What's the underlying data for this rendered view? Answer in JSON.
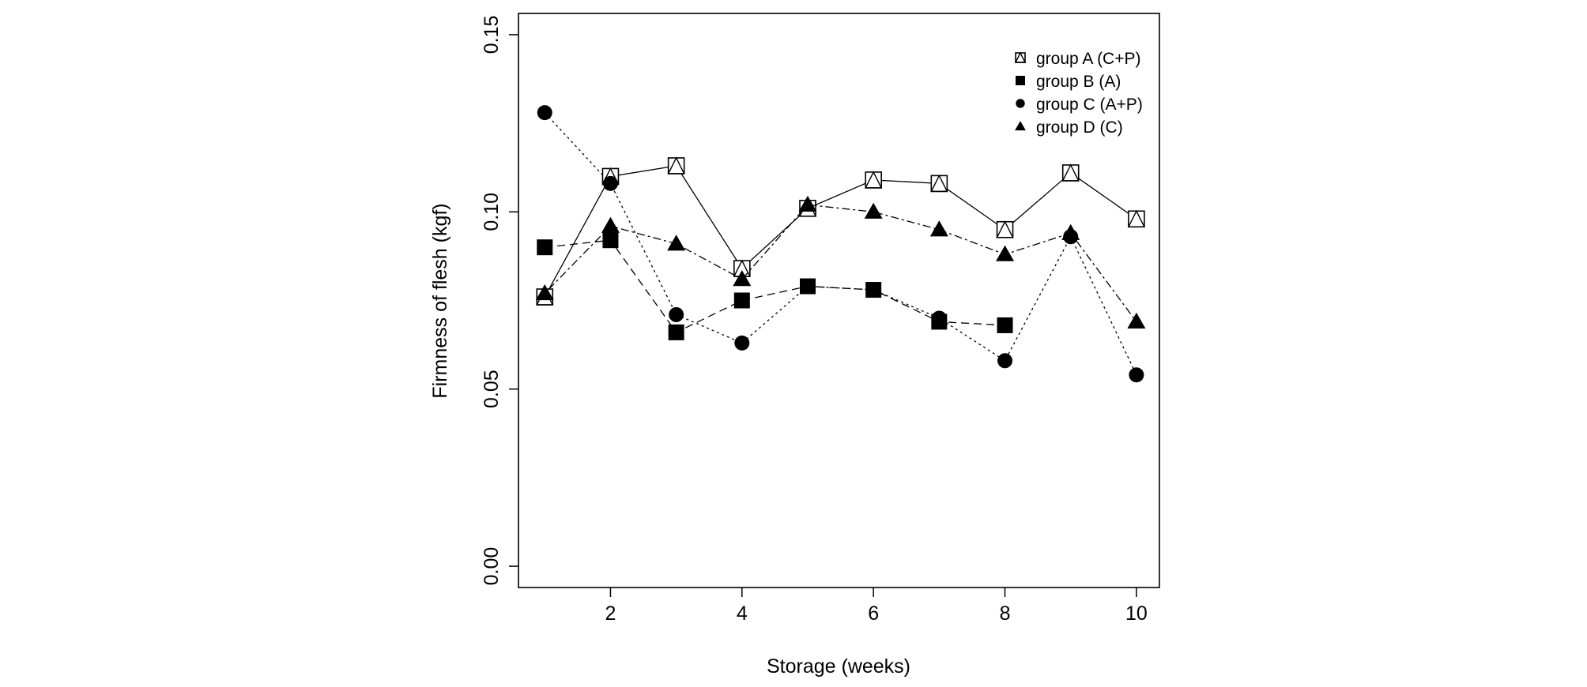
{
  "chart_data": {
    "type": "line",
    "title": "",
    "xlabel": "Storage (weeks)",
    "ylabel": "Firmness of flesh (kgf)",
    "xlim": [
      0.6,
      10.35
    ],
    "ylim": [
      -0.006,
      0.156
    ],
    "x_ticks": [
      2,
      4,
      6,
      8,
      10
    ],
    "x_tick_labels": [
      "2",
      "4",
      "6",
      "8",
      "10"
    ],
    "y_ticks": [
      0.0,
      0.05,
      0.1,
      0.15
    ],
    "y_tick_labels": [
      "0.00",
      "0.05",
      "0.10",
      "0.15"
    ],
    "grid": false,
    "legend_position": "top-right",
    "series": [
      {
        "name": "group A (C+P)",
        "marker": "boxed-triangle",
        "line_style": "solid",
        "x": [
          1,
          2,
          3,
          4,
          5,
          6,
          7,
          8,
          9,
          10
        ],
        "values": [
          0.076,
          0.11,
          0.113,
          0.084,
          0.101,
          0.109,
          0.108,
          0.095,
          0.111,
          0.098
        ]
      },
      {
        "name": "group B (A)",
        "marker": "square",
        "line_style": "dashed",
        "x": [
          1,
          2,
          3,
          4,
          5,
          6,
          7,
          8
        ],
        "values": [
          0.09,
          0.092,
          0.066,
          0.075,
          0.079,
          0.078,
          0.069,
          0.068
        ]
      },
      {
        "name": "group C (A+P)",
        "marker": "circle",
        "line_style": "dotted",
        "x": [
          1,
          2,
          3,
          4,
          5,
          6,
          7,
          8,
          9,
          10
        ],
        "values": [
          0.128,
          0.108,
          0.071,
          0.063,
          0.079,
          0.078,
          0.07,
          0.058,
          0.093,
          0.054
        ]
      },
      {
        "name": "group D (C)",
        "marker": "triangle",
        "line_style": "dotdash",
        "x": [
          1,
          2,
          3,
          4,
          5,
          6,
          7,
          8,
          9,
          10
        ],
        "values": [
          0.077,
          0.096,
          0.091,
          0.081,
          0.102,
          0.1,
          0.095,
          0.088,
          0.094,
          0.069
        ]
      }
    ]
  }
}
